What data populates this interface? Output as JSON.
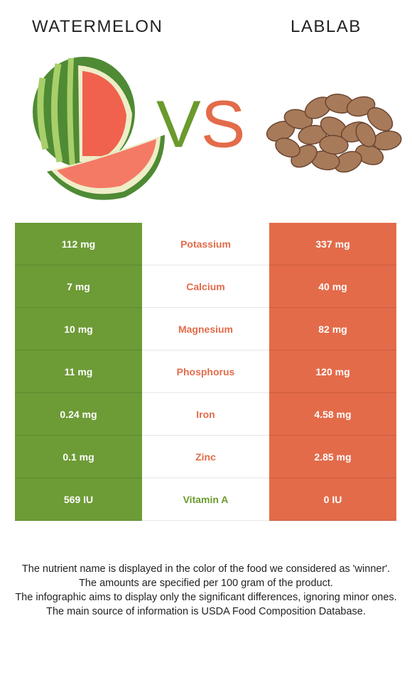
{
  "left_food": {
    "name": "WATERMELON",
    "color": "#6d9b36"
  },
  "right_food": {
    "name": "LABLAB",
    "color": "#e36b4a"
  },
  "vs": {
    "v": "V",
    "s": "S"
  },
  "rows": [
    {
      "left": "112 mg",
      "nutrient": "Potassium",
      "right": "337 mg",
      "winner": "right"
    },
    {
      "left": "7 mg",
      "nutrient": "Calcium",
      "right": "40 mg",
      "winner": "right"
    },
    {
      "left": "10 mg",
      "nutrient": "Magnesium",
      "right": "82 mg",
      "winner": "right"
    },
    {
      "left": "11 mg",
      "nutrient": "Phosphorus",
      "right": "120 mg",
      "winner": "right"
    },
    {
      "left": "0.24 mg",
      "nutrient": "Iron",
      "right": "4.58 mg",
      "winner": "right"
    },
    {
      "left": "0.1 mg",
      "nutrient": "Zinc",
      "right": "2.85 mg",
      "winner": "right"
    },
    {
      "left": "569 IU",
      "nutrient": "Vitamin A",
      "right": "0 IU",
      "winner": "left"
    }
  ],
  "footer": [
    "The nutrient name is displayed in the color of the food we considered as 'winner'.",
    "The amounts are specified per 100 gram of the product.",
    "The infographic aims to display only the significant differences, ignoring minor ones.",
    "The main source of information is USDA Food Composition Database."
  ]
}
